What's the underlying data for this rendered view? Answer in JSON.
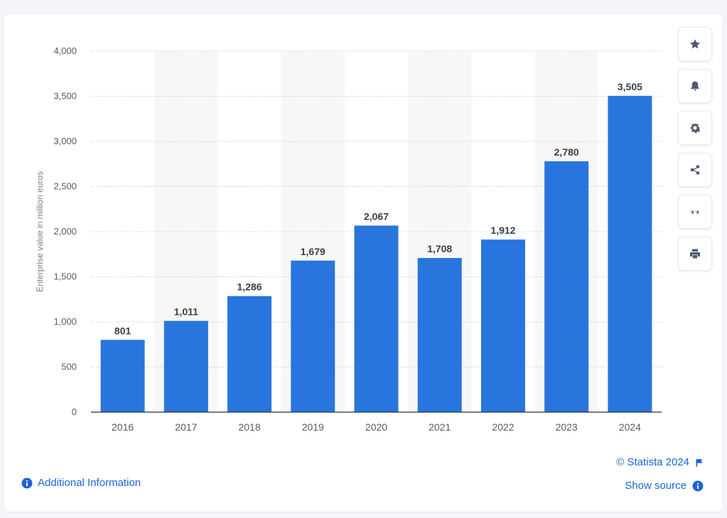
{
  "chart_data": {
    "type": "bar",
    "categories": [
      "2016",
      "2017",
      "2018",
      "2019",
      "2020",
      "2021",
      "2022",
      "2023",
      "2024"
    ],
    "values": [
      801,
      1011,
      1286,
      1679,
      2067,
      1708,
      1912,
      2780,
      3505
    ],
    "value_labels": [
      "801",
      "1,011",
      "1,286",
      "1,679",
      "2,067",
      "1,708",
      "1,912",
      "2,780",
      "3,505"
    ],
    "ylabel": "Enterprise value in million euros",
    "xlabel": "",
    "ylim": [
      0,
      4000
    ],
    "yticks": [
      0,
      500,
      1000,
      1500,
      2000,
      2500,
      3000,
      3500,
      4000
    ],
    "ytick_labels": [
      "0",
      "500",
      "1,000",
      "1,500",
      "2,000",
      "2,500",
      "3,000",
      "3,500",
      "4,000"
    ],
    "grid": true,
    "bar_color": "#2875dd"
  },
  "toolbar": {
    "icons": [
      "star-icon",
      "bell-icon",
      "gear-icon",
      "share-icon",
      "quote-icon",
      "print-icon"
    ]
  },
  "footer": {
    "additional_info": "Additional Information",
    "copyright": "© Statista 2024",
    "show_source": "Show source"
  },
  "colors": {
    "link": "#1a64d6",
    "icon": "#4d5b6f",
    "band": "#f7f7f8"
  }
}
